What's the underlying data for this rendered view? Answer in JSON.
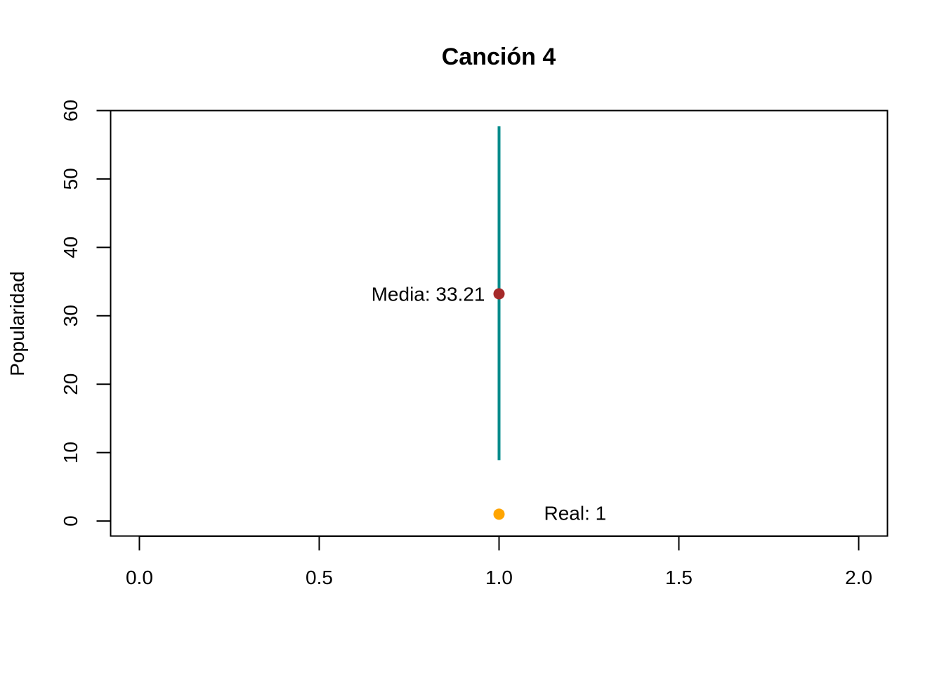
{
  "chart_data": {
    "type": "scatter",
    "title": "Canción 4",
    "xlabel": "",
    "ylabel": "Popularidad",
    "xlim": [
      -0.08,
      2.08
    ],
    "ylim": [
      -2.2,
      60
    ],
    "xticks": [
      0.0,
      0.5,
      1.0,
      1.5,
      2.0
    ],
    "xtick_labels": [
      "0.0",
      "0.5",
      "1.0",
      "1.5",
      "2.0"
    ],
    "yticks": [
      0,
      10,
      20,
      30,
      40,
      50,
      60
    ],
    "ytick_labels": [
      "0",
      "10",
      "20",
      "30",
      "40",
      "50",
      "60"
    ],
    "grid": false,
    "legend": "none",
    "interval": {
      "x": 1.0,
      "low": 8.9,
      "high": 57.7,
      "color": "#008B8B"
    },
    "mean_point": {
      "x": 1.0,
      "y": 33.21,
      "label": "Media: 33.21",
      "color": "#A52A2A"
    },
    "real_point": {
      "x": 1.0,
      "y": 1,
      "label": "Real: 1",
      "color": "#FFA500"
    }
  }
}
